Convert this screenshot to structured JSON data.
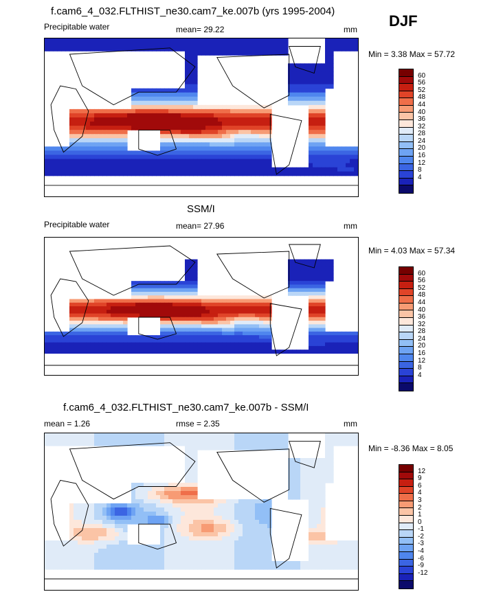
{
  "season": "DJF",
  "panels": [
    {
      "title": "f.cam6_4_032.FLTHIST_ne30.cam7_ke.007b (yrs 1995-2004)",
      "left_label": "Precipitable water",
      "center_label": "mean=  29.22",
      "units": "mm",
      "minmax": "Min =   3.38 Max =  57.72"
    },
    {
      "title": "SSM/I",
      "left_label": "Precipitable water",
      "center_label": "mean=  27.96",
      "units": "mm",
      "minmax": "Min =   4.03 Max =  57.34"
    },
    {
      "title": "f.cam6_4_032.FLTHIST_ne30.cam7_ke.007b - SSM/I",
      "left_label": "mean =   1.26",
      "center_label": "rmse =   2.35",
      "units": "mm",
      "minmax": "Min =  -8.36 Max =   8.05"
    }
  ],
  "chart_data": [
    {
      "type": "heatmap",
      "title": "f.cam6_4_032.FLTHIST_ne30.cam7_ke.007b (yrs 1995-2004)",
      "variable": "Precipitable water",
      "units": "mm",
      "mean": 29.22,
      "min": 3.38,
      "max": 57.72,
      "colorbar_levels": [
        4,
        8,
        12,
        16,
        20,
        24,
        28,
        32,
        36,
        40,
        44,
        48,
        52,
        56,
        60
      ],
      "colorbar_colors": [
        "#0b0a6b",
        "#1a22b8",
        "#2a43d6",
        "#3b65e3",
        "#4f86ee",
        "#6ea3f3",
        "#92bff6",
        "#b9d6f7",
        "#e0ebf8",
        "#fde7db",
        "#fbc4a6",
        "#f79b74",
        "#ef6e49",
        "#e04428",
        "#c61f11",
        "#a10a0a",
        "#760000"
      ]
    },
    {
      "type": "heatmap",
      "title": "SSM/I",
      "variable": "Precipitable water",
      "units": "mm",
      "mean": 27.96,
      "min": 4.03,
      "max": 57.34,
      "colorbar_levels": [
        4,
        8,
        12,
        16,
        20,
        24,
        28,
        32,
        36,
        40,
        44,
        48,
        52,
        56,
        60
      ],
      "colorbar_colors": [
        "#0b0a6b",
        "#1a22b8",
        "#2a43d6",
        "#3b65e3",
        "#4f86ee",
        "#6ea3f3",
        "#92bff6",
        "#b9d6f7",
        "#e0ebf8",
        "#fde7db",
        "#fbc4a6",
        "#f79b74",
        "#ef6e49",
        "#e04428",
        "#c61f11",
        "#a10a0a",
        "#760000"
      ]
    },
    {
      "type": "heatmap",
      "title": "f.cam6_4_032.FLTHIST_ne30.cam7_ke.007b - SSM/I",
      "units": "mm",
      "mean": 1.26,
      "rmse": 2.35,
      "min": -8.36,
      "max": 8.05,
      "colorbar_levels": [
        -12,
        -9,
        -6,
        -4,
        -3,
        -2,
        -1,
        0,
        1,
        2,
        3,
        4,
        6,
        9,
        12
      ],
      "colorbar_colors": [
        "#0b0a6b",
        "#1a22b8",
        "#2a43d6",
        "#3b65e3",
        "#4f86ee",
        "#6ea3f3",
        "#92bff6",
        "#b9d6f7",
        "#e0ebf8",
        "#fde7db",
        "#fbc4a6",
        "#f79b74",
        "#ef6e49",
        "#e04428",
        "#c61f11",
        "#a10a0a",
        "#760000"
      ]
    }
  ]
}
